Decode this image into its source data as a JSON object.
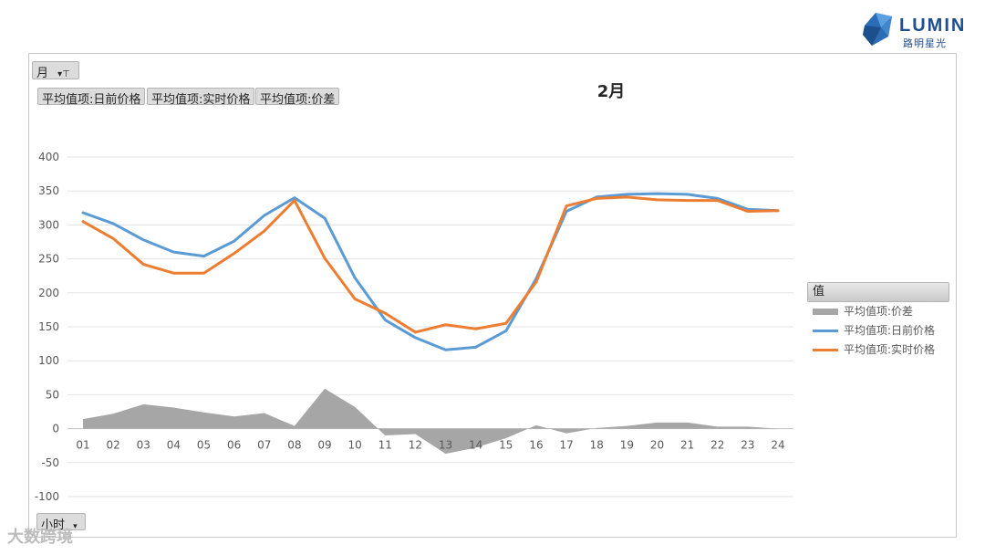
{
  "logo": {
    "name": "LUMIN",
    "sub": "路明星光"
  },
  "filters": {
    "month_button": "月",
    "field_buttons": [
      "平均值项:日前价格",
      "平均值项:实时价格",
      "平均值项:价差"
    ],
    "hour_button": "小时"
  },
  "colors": {
    "day_ahead": "#5b9bd5",
    "realtime": "#ed7d31",
    "spread": "#a6a6a6"
  },
  "legend": {
    "title": "值",
    "items": [
      {
        "label": "平均值项:价差",
        "kind": "area",
        "color": "#a6a6a6"
      },
      {
        "label": "平均值项:日前价格",
        "kind": "line",
        "color": "#5b9bd5"
      },
      {
        "label": "平均值项:实时价格",
        "kind": "line",
        "color": "#ed7d31"
      }
    ]
  },
  "watermark_text": "大数跨境",
  "chart_data": {
    "type": "line",
    "title": "2月",
    "xlabel": "",
    "ylabel": "",
    "categories": [
      "01",
      "02",
      "03",
      "04",
      "05",
      "06",
      "07",
      "08",
      "09",
      "10",
      "11",
      "12",
      "13",
      "14",
      "15",
      "16",
      "17",
      "18",
      "19",
      "20",
      "21",
      "22",
      "23",
      "24"
    ],
    "ylim": [
      -100,
      400
    ],
    "yticks": [
      -100,
      -50,
      0,
      50,
      100,
      150,
      200,
      250,
      300,
      350,
      400
    ],
    "grid": true,
    "legend_position": "right",
    "series": [
      {
        "name": "平均值项:价差",
        "type": "area",
        "values": [
          14,
          22,
          36,
          31,
          24,
          18,
          23,
          4,
          59,
          32,
          -10,
          -8,
          -37,
          -28,
          -14,
          5,
          -7,
          1,
          4,
          9,
          9,
          3,
          3,
          0
        ]
      },
      {
        "name": "平均值项:日前价格",
        "type": "line",
        "values": [
          318,
          302,
          278,
          260,
          254,
          276,
          314,
          340,
          310,
          222,
          160,
          134,
          116,
          120,
          144,
          221,
          320,
          341,
          345,
          346,
          345,
          339,
          323,
          321
        ]
      },
      {
        "name": "平均值项:实时价格",
        "type": "line",
        "values": [
          305,
          280,
          242,
          229,
          229,
          258,
          291,
          336,
          251,
          191,
          170,
          142,
          153,
          147,
          155,
          216,
          328,
          339,
          341,
          337,
          336,
          336,
          320,
          321
        ]
      }
    ]
  }
}
